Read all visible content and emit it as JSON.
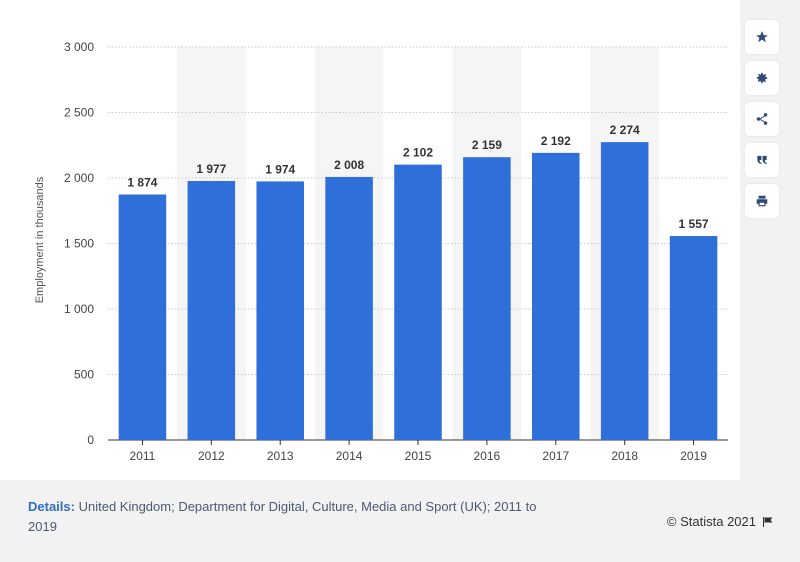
{
  "chart_data": {
    "type": "bar",
    "categories": [
      "2011",
      "2012",
      "2013",
      "2014",
      "2015",
      "2016",
      "2017",
      "2018",
      "2019"
    ],
    "values": [
      1874,
      1977,
      1974,
      2008,
      2102,
      2159,
      2192,
      2274,
      1557
    ],
    "value_labels": [
      "1 874",
      "1 977",
      "1 974",
      "2 008",
      "2 102",
      "2 159",
      "2 192",
      "2 274",
      "1 557"
    ],
    "ylabel": "Employment in thousands",
    "ylim": [
      0,
      3000
    ],
    "yticks": [
      0,
      500,
      1000,
      1500,
      2000,
      2500,
      3000
    ],
    "ytick_labels": [
      "0",
      "500",
      "1 000",
      "1 500",
      "2 000",
      "2 500",
      "3 000"
    ],
    "bar_color": "#2f6fda",
    "grid": true
  },
  "footer": {
    "details_label": "Details:",
    "details_text": "United Kingdom; Department for Digital, Culture, Media and Sport (UK); 2011 to 2019",
    "copyright": "© Statista 2021"
  },
  "toolbar": {
    "icons": [
      "star-icon",
      "gear-icon",
      "share-icon",
      "quote-icon",
      "print-icon"
    ]
  }
}
